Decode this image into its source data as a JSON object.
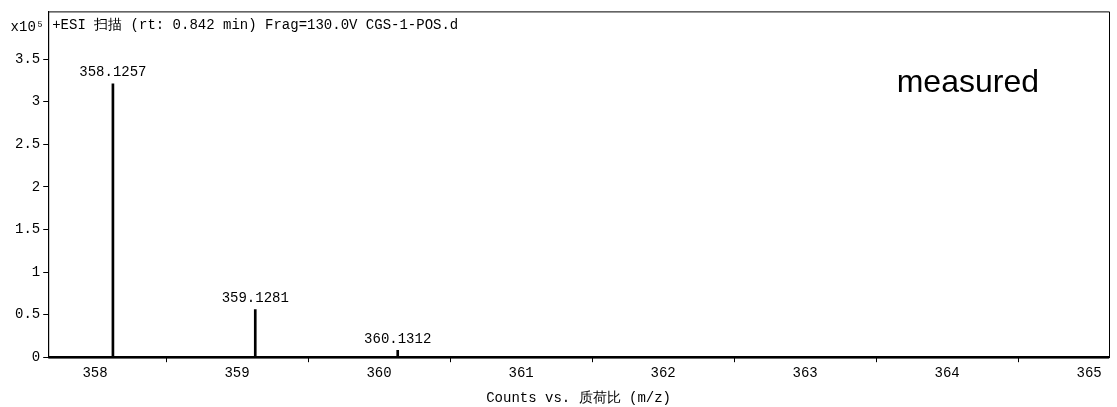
{
  "chart_data": {
    "type": "bar",
    "title": "+ESI 扫描 (rt: 0.842 min) Frag=130.0V CGS-1-POS.d",
    "xlabel": "Counts vs. 质荷比 (m/z)",
    "ylabel": "x10⁵",
    "x": [
      358.1257,
      359.1281,
      360.1312
    ],
    "values": [
      3.21,
      0.56,
      0.08
    ],
    "color": "#000000",
    "xlim": [
      357.67,
      365.14
    ],
    "ylim": [
      0,
      4.06
    ],
    "xticks": [
      358,
      359,
      360,
      361,
      362,
      363,
      364,
      365
    ],
    "yticks": [
      0,
      0.5,
      1,
      1.5,
      2,
      2.5,
      3,
      3.5
    ],
    "annotations": [
      {
        "text": "358.1257",
        "x": 358.1257,
        "y": 3.21
      },
      {
        "text": "359.1281",
        "x": 359.1281,
        "y": 0.56
      },
      {
        "text": "360.1312",
        "x": 360.1312,
        "y": 0.08
      },
      "measured"
    ]
  }
}
